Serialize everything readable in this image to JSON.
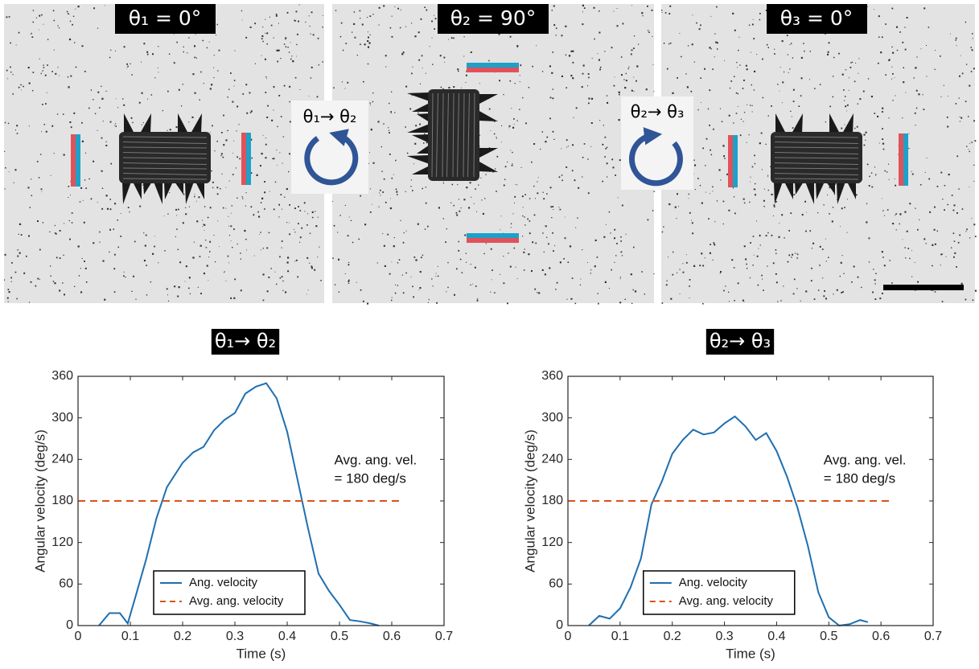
{
  "panels": [
    {
      "label": "θ₁ = 0°"
    },
    {
      "label": "θ₂ = 90°"
    },
    {
      "label": "θ₃ = 0°"
    }
  ],
  "transitions": [
    "θ₁→ θ₂",
    "θ₂→ θ₃"
  ],
  "chart_data": [
    {
      "type": "line",
      "title": "θ₁→ θ₂",
      "xlabel": "Time (s)",
      "ylabel": "Angular velocity (deg/s)",
      "xlim": [
        0,
        0.7
      ],
      "xticks": [
        0,
        0.1,
        0.2,
        0.3,
        0.4,
        0.5,
        0.6,
        0.7
      ],
      "ylim": [
        0,
        360
      ],
      "yticks": [
        0,
        60,
        120,
        180,
        240,
        300,
        360
      ],
      "legend": "lower center",
      "annotation": [
        "Avg. ang. vel.",
        "= 180 deg/s"
      ],
      "series": [
        {
          "name": "Ang. velocity",
          "color": "#1f6fb0",
          "linestyle": "solid",
          "x": [
            0.04,
            0.06,
            0.08,
            0.095,
            0.11,
            0.13,
            0.15,
            0.17,
            0.2,
            0.22,
            0.24,
            0.26,
            0.28,
            0.3,
            0.32,
            0.34,
            0.36,
            0.38,
            0.4,
            0.42,
            0.44,
            0.46,
            0.48,
            0.5,
            0.52,
            0.54,
            0.56,
            0.575
          ],
          "values": [
            0,
            18,
            18,
            3,
            42,
            95,
            155,
            200,
            235,
            250,
            258,
            282,
            297,
            307,
            335,
            345,
            350,
            328,
            280,
            210,
            140,
            75,
            50,
            30,
            8,
            6,
            3,
            0
          ]
        },
        {
          "name": "Avg. ang. velocity",
          "color": "#d95319",
          "linestyle": "dashed",
          "x": [
            0,
            0.62
          ],
          "values": [
            180,
            180
          ]
        }
      ]
    },
    {
      "type": "line",
      "title": "θ₂→ θ₃",
      "xlabel": "Time (s)",
      "ylabel": "Angular velocity (deg/s)",
      "xlim": [
        0,
        0.7
      ],
      "xticks": [
        0,
        0.1,
        0.2,
        0.3,
        0.4,
        0.5,
        0.6,
        0.7
      ],
      "ylim": [
        0,
        360
      ],
      "yticks": [
        0,
        60,
        120,
        180,
        240,
        300,
        360
      ],
      "legend": "lower center",
      "annotation": [
        "Avg. ang. vel.",
        "= 180 deg/s"
      ],
      "series": [
        {
          "name": "Ang. velocity",
          "color": "#1f6fb0",
          "linestyle": "solid",
          "x": [
            0.04,
            0.06,
            0.08,
            0.1,
            0.12,
            0.14,
            0.16,
            0.18,
            0.2,
            0.22,
            0.24,
            0.26,
            0.28,
            0.3,
            0.32,
            0.34,
            0.36,
            0.38,
            0.4,
            0.42,
            0.44,
            0.46,
            0.48,
            0.5,
            0.52,
            0.54,
            0.56,
            0.575
          ],
          "values": [
            0,
            14,
            10,
            25,
            55,
            97,
            175,
            208,
            248,
            268,
            283,
            276,
            279,
            292,
            302,
            288,
            268,
            278,
            252,
            215,
            170,
            115,
            48,
            12,
            0,
            2,
            8,
            5
          ]
        },
        {
          "name": "Avg. ang. velocity",
          "color": "#d95319",
          "linestyle": "dashed",
          "x": [
            0,
            0.62
          ],
          "values": [
            180,
            180
          ]
        }
      ]
    }
  ]
}
